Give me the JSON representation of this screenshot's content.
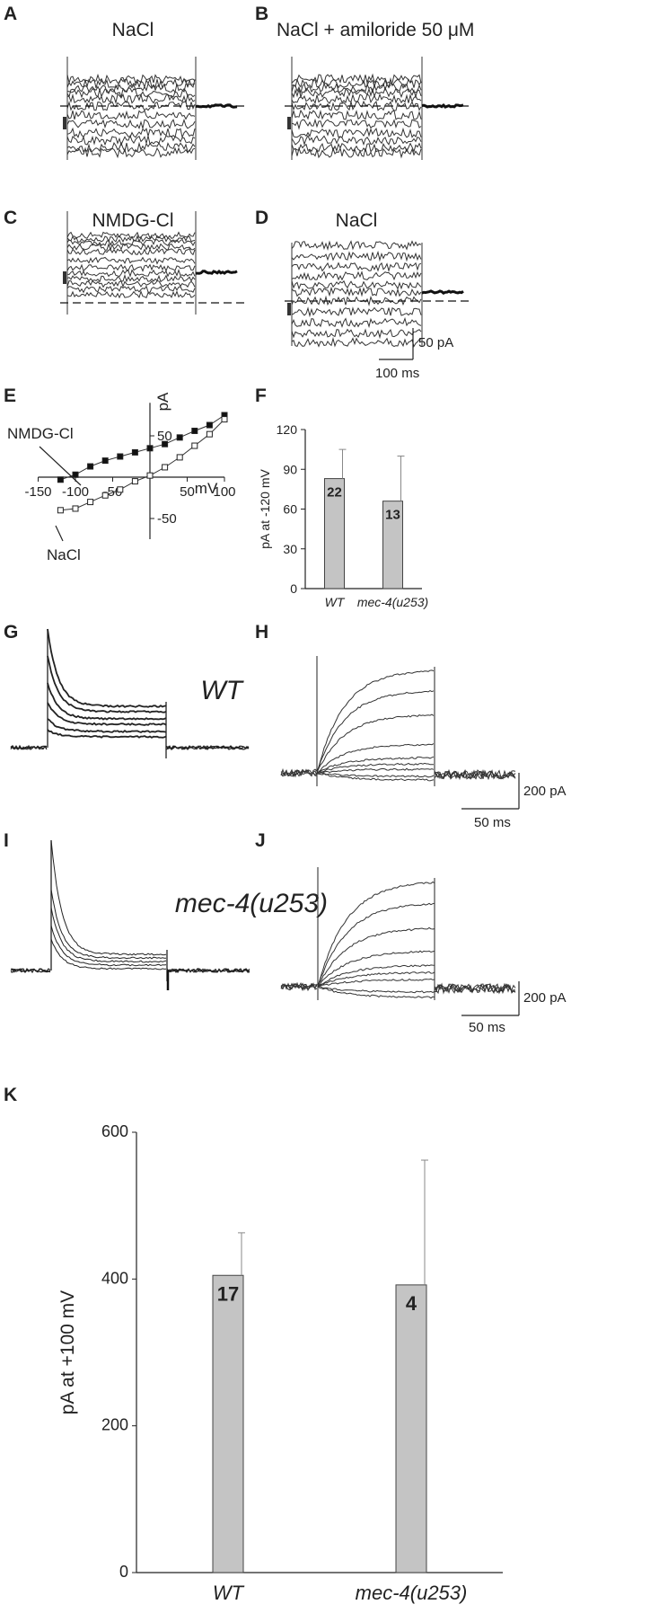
{
  "panels": {
    "A": {
      "label": "A",
      "title": "NaCl"
    },
    "B": {
      "label": "B",
      "title": "NaCl + amiloride 50 μM"
    },
    "C": {
      "label": "C",
      "title": "NMDG-Cl"
    },
    "D": {
      "label": "D",
      "title": "NaCl"
    },
    "E": {
      "label": "E"
    },
    "F": {
      "label": "F"
    },
    "G": {
      "label": "G",
      "title": "WT"
    },
    "H": {
      "label": "H"
    },
    "I": {
      "label": "I",
      "title": "mec-4(u253)"
    },
    "J": {
      "label": "J"
    },
    "K": {
      "label": "K"
    }
  },
  "scalebars": {
    "d_current": "50 pA",
    "d_time": "100 ms",
    "h_current": "200 pA",
    "h_time": "50 ms",
    "j_current": "200 pA",
    "j_time": "50 ms"
  },
  "chart_data": [
    {
      "panel": "E",
      "type": "line",
      "xlabel": "mV",
      "ylabel": "pA",
      "xlim": [
        -150,
        100
      ],
      "ylim": [
        -80,
        90
      ],
      "x_ticks": [
        "-150",
        "-100",
        "-50",
        "50",
        "100"
      ],
      "y_ticks": [
        "50",
        "-50"
      ],
      "series": [
        {
          "name": "NMDG-Cl",
          "marker": "filled-square",
          "x": [
            -120,
            -100,
            -80,
            -60,
            -40,
            -20,
            0,
            20,
            40,
            60,
            80,
            100
          ],
          "y": [
            -3,
            3,
            13,
            20,
            25,
            30,
            35,
            40,
            48,
            56,
            63,
            75
          ]
        },
        {
          "name": "NaCl",
          "marker": "open-square",
          "x": [
            -120,
            -100,
            -80,
            -60,
            -40,
            -20,
            0,
            20,
            40,
            60,
            80,
            100
          ],
          "y": [
            -40,
            -38,
            -30,
            -22,
            -15,
            -5,
            2,
            12,
            24,
            38,
            52,
            70
          ]
        }
      ]
    },
    {
      "panel": "F",
      "type": "bar",
      "ylabel": "pA at -120 mV",
      "ylim": [
        0,
        120
      ],
      "y_ticks": [
        "0",
        "30",
        "60",
        "90",
        "120"
      ],
      "categories": [
        "WT",
        "mec-4(u253)"
      ],
      "values": [
        83,
        66
      ],
      "errors": [
        22,
        34
      ],
      "bar_labels": [
        "22",
        "13"
      ],
      "bar_color": "#c4c4c4"
    },
    {
      "panel": "K",
      "type": "bar",
      "ylabel": "pA at +100 mV",
      "ylim": [
        0,
        600
      ],
      "y_ticks": [
        "0",
        "200",
        "400",
        "600"
      ],
      "categories": [
        "WT",
        "mec-4(u253)"
      ],
      "values": [
        405,
        392
      ],
      "errors": [
        58,
        170
      ],
      "bar_labels": [
        "17",
        "4"
      ],
      "bar_color": "#c4c4c4"
    }
  ]
}
